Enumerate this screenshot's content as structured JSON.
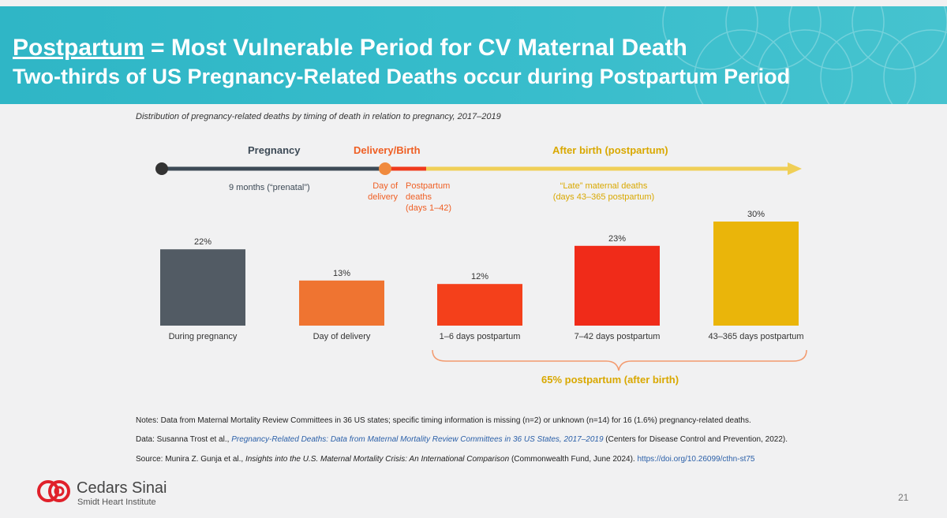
{
  "header": {
    "title_underlined": "Postpartum",
    "title_rest": " = Most Vulnerable Period for CV Maternal Death",
    "subtitle": "Two-thirds of US Pregnancy-Related Deaths occur during Postpartum Period"
  },
  "timeline": {
    "phases": {
      "pregnancy": "Pregnancy",
      "delivery": "Delivery/Birth",
      "postpartum": "After birth (postpartum)"
    },
    "labels": {
      "prenatal": "9 months (“prenatal”)",
      "day_of_1": "Day of",
      "day_of_2": "delivery",
      "pp_1": "Postpartum",
      "pp_2": "deaths",
      "pp_3": "(days 1–42)",
      "late_1": "“Late” maternal deaths",
      "late_2": "(days 43–365 postpartum)"
    }
  },
  "chart_data": {
    "type": "bar",
    "title": "Distribution of pregnancy-related deaths by timing of death in relation to pregnancy, 2017–2019",
    "categories": [
      "During pregnancy",
      "Day of delivery",
      "1–6 days postpartum",
      "7–42 days postpartum",
      "43–365 days postpartum"
    ],
    "values": [
      22,
      13,
      12,
      23,
      30
    ],
    "value_labels": [
      "22%",
      "13%",
      "12%",
      "23%",
      "30%"
    ],
    "colors": [
      "#525b64",
      "#ef7431",
      "#f4401b",
      "#f02b19",
      "#eab50a"
    ],
    "ylim": [
      0,
      30
    ],
    "xlabel": "",
    "ylabel": "",
    "annotation": "65% postpartum (after birth)"
  },
  "notes": {
    "notes": "Notes: Data from Maternal Mortality Review Committees in 36 US states; specific timing information is missing (n=2) or unknown (n=14) for 16 (1.6%) pregnancy-related deaths.",
    "data_prefix": "Data: Susanna Trost et al., ",
    "data_title": "Pregnancy-Related Deaths: Data from Maternal Mortality Review Committees in 36 US States, 2017–2019",
    "data_suffix": " (Centers for Disease Control and Prevention, 2022).",
    "source_prefix": "Source: Munira Z. Gunja et al., ",
    "source_title": "Insights into the U.S. Maternal Mortality Crisis: An International Comparison",
    "source_suffix": " (Commonwealth Fund, June 2024). ",
    "source_link": "https://doi.org/10.26099/cthn-st75"
  },
  "footer": {
    "brand": "Cedars Sinai",
    "sub_brand": "Smidt Heart Institute",
    "page_number": "21"
  },
  "colors": {
    "header_teal": "#36bccb",
    "pregnancy": "#3d4a56",
    "delivery": "#ef5f24",
    "postpartum": "#d9a800",
    "postpartum_line": "#f0cf57"
  }
}
